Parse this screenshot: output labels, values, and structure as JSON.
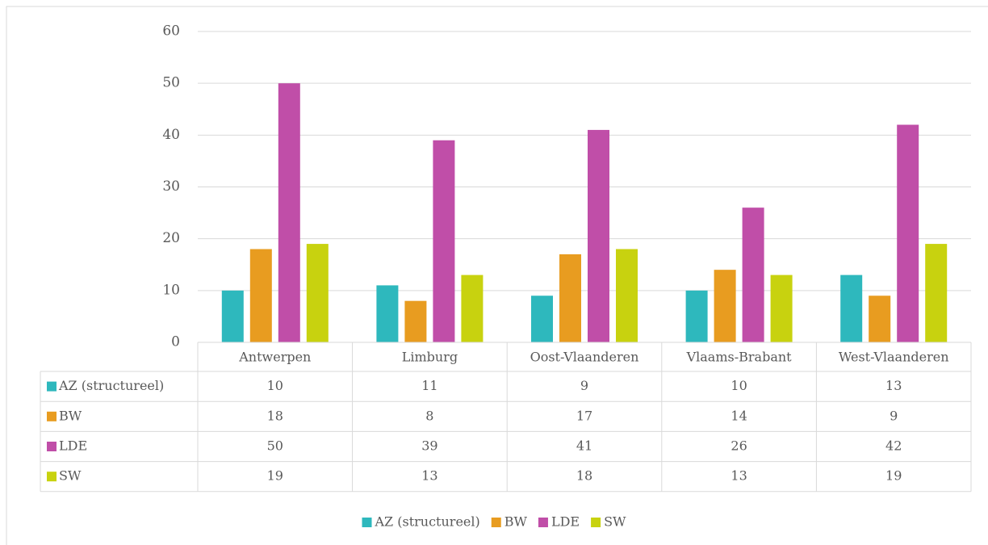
{
  "chart_data": {
    "type": "bar",
    "categories": [
      "Antwerpen",
      "Limburg",
      "Oost-Vlaanderen",
      "Vlaams-Brabant",
      "West-Vlaanderen"
    ],
    "series": [
      {
        "name": "AZ (structureel)",
        "color": "#2eb8bd",
        "values": [
          10,
          11,
          9,
          10,
          13
        ]
      },
      {
        "name": "BW",
        "color": "#e89c20",
        "values": [
          18,
          8,
          17,
          14,
          9
        ]
      },
      {
        "name": "LDE",
        "color": "#c04ea8",
        "values": [
          50,
          39,
          41,
          26,
          42
        ]
      },
      {
        "name": "SW",
        "color": "#c8d20f",
        "values": [
          19,
          13,
          18,
          13,
          19
        ]
      }
    ],
    "ylim": [
      0,
      60
    ],
    "yticks": [
      0,
      10,
      20,
      30,
      40,
      50,
      60
    ],
    "grid": true,
    "legend": "bottom",
    "data_table": true
  }
}
